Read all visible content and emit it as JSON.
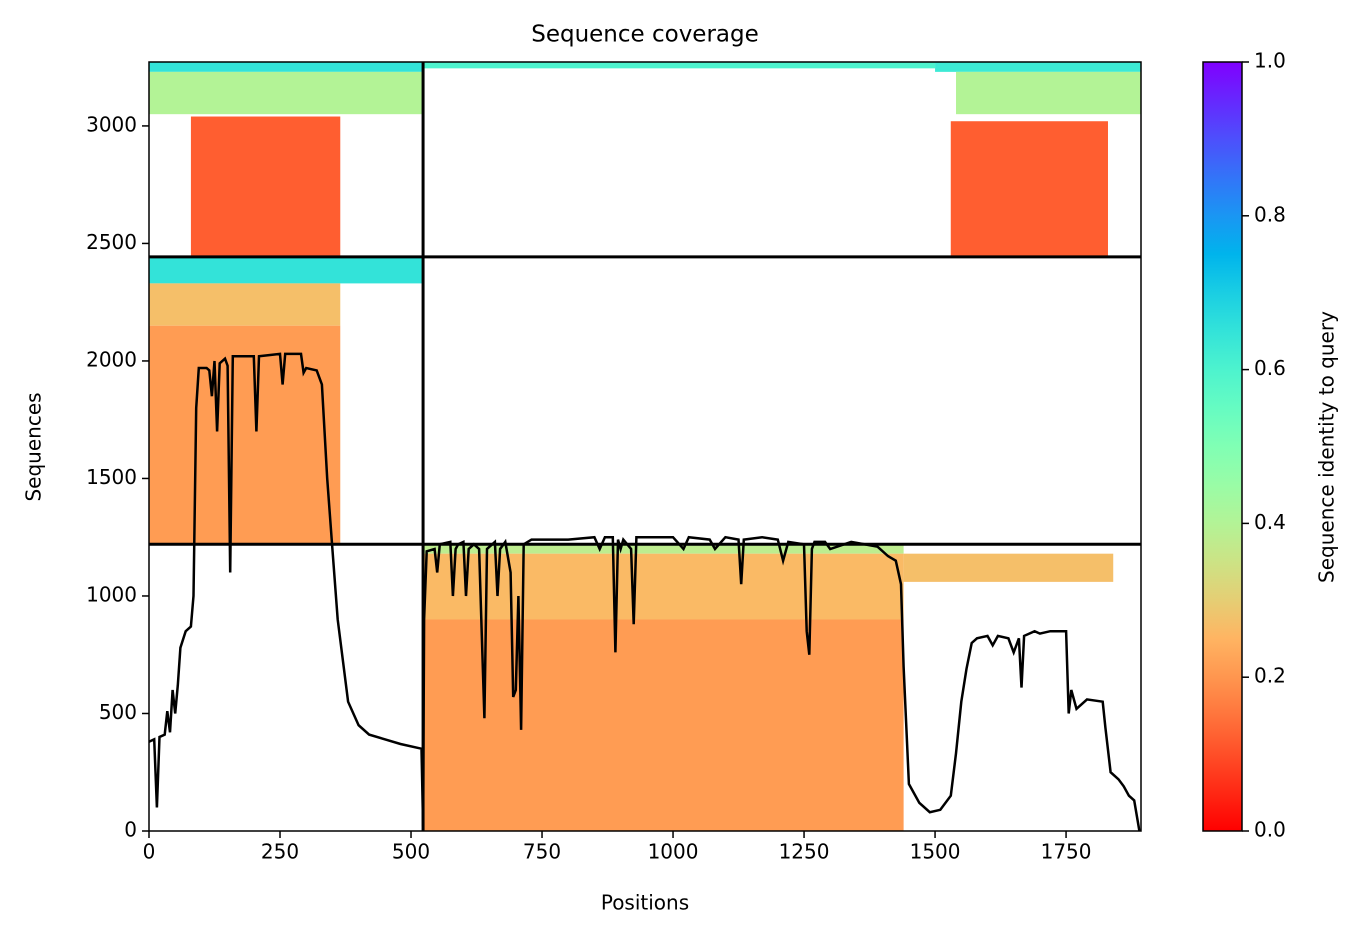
{
  "chart_data": {
    "type": "coverage",
    "title": "Sequence coverage",
    "xlabel": "Positions",
    "ylabel": "Sequences",
    "xlim": [
      0,
      1893
    ],
    "ylim": [
      0,
      3272
    ],
    "xticks": [
      0,
      250,
      500,
      750,
      1000,
      1250,
      1500,
      1750
    ],
    "yticks": [
      0,
      500,
      1000,
      1500,
      2000,
      2500,
      3000
    ],
    "line_color": "#000000",
    "separators": {
      "x": [
        523
      ],
      "y": [
        1220,
        2443
      ]
    },
    "blocks": [
      {
        "x0": 0,
        "x1": 523,
        "y0": 3230,
        "y1": 3272,
        "identity": 0.65
      },
      {
        "x0": 0,
        "x1": 523,
        "y0": 3050,
        "y1": 3230,
        "identity": 0.4
      },
      {
        "x0": 80,
        "x1": 365,
        "y0": 2443,
        "y1": 3040,
        "identity": 0.12
      },
      {
        "x0": 523,
        "x1": 1500,
        "y0": 3245,
        "y1": 3272,
        "identity": 0.6
      },
      {
        "x0": 1500,
        "x1": 1893,
        "y0": 3230,
        "y1": 3272,
        "identity": 0.63
      },
      {
        "x0": 1540,
        "x1": 1893,
        "y0": 3050,
        "y1": 3230,
        "identity": 0.4
      },
      {
        "x0": 1530,
        "x1": 1830,
        "y0": 2443,
        "y1": 3020,
        "identity": 0.12
      },
      {
        "x0": 0,
        "x1": 523,
        "y0": 2330,
        "y1": 2443,
        "identity": 0.65
      },
      {
        "x0": 0,
        "x1": 365,
        "y0": 2150,
        "y1": 2330,
        "identity": 0.27
      },
      {
        "x0": 0,
        "x1": 365,
        "y0": 1220,
        "y1": 2150,
        "identity": 0.21
      },
      {
        "x0": 523,
        "x1": 1440,
        "y0": 1180,
        "y1": 1220,
        "identity": 0.38
      },
      {
        "x0": 523,
        "x1": 1440,
        "y0": 900,
        "y1": 1180,
        "identity": 0.26
      },
      {
        "x0": 523,
        "x1": 1440,
        "y0": 0,
        "y1": 900,
        "identity": 0.21
      },
      {
        "x0": 1440,
        "x1": 1840,
        "y0": 1060,
        "y1": 1180,
        "identity": 0.27
      }
    ],
    "coverage": {
      "x": [
        0,
        10,
        15,
        20,
        30,
        35,
        40,
        45,
        50,
        55,
        60,
        70,
        80,
        85,
        90,
        95,
        110,
        115,
        120,
        125,
        130,
        135,
        145,
        150,
        155,
        160,
        200,
        205,
        210,
        250,
        255,
        260,
        290,
        295,
        300,
        320,
        330,
        340,
        350,
        360,
        380,
        400,
        420,
        450,
        480,
        520,
        523,
        525,
        530,
        545,
        550,
        555,
        575,
        580,
        585,
        590,
        600,
        605,
        610,
        620,
        630,
        640,
        645,
        660,
        665,
        670,
        680,
        690,
        695,
        700,
        705,
        710,
        715,
        730,
        800,
        850,
        860,
        870,
        885,
        890,
        895,
        900,
        905,
        920,
        925,
        930,
        1000,
        1020,
        1030,
        1070,
        1080,
        1100,
        1125,
        1130,
        1135,
        1170,
        1200,
        1210,
        1220,
        1250,
        1255,
        1260,
        1265,
        1270,
        1290,
        1300,
        1340,
        1390,
        1410,
        1425,
        1435,
        1440,
        1450,
        1470,
        1490,
        1510,
        1530,
        1540,
        1550,
        1560,
        1570,
        1580,
        1600,
        1610,
        1620,
        1640,
        1650,
        1660,
        1665,
        1670,
        1690,
        1700,
        1720,
        1750,
        1755,
        1760,
        1770,
        1790,
        1820,
        1825,
        1835,
        1850,
        1860,
        1870,
        1880,
        1890
      ],
      "y": [
        380,
        390,
        100,
        400,
        410,
        510,
        420,
        600,
        500,
        620,
        780,
        850,
        870,
        1000,
        1800,
        1970,
        1970,
        1960,
        1850,
        2000,
        1700,
        1990,
        2010,
        1980,
        1100,
        2020,
        2020,
        1700,
        2020,
        2030,
        1900,
        2030,
        2030,
        1950,
        1970,
        1960,
        1900,
        1500,
        1200,
        900,
        550,
        450,
        410,
        390,
        370,
        350,
        20,
        900,
        1190,
        1200,
        1100,
        1220,
        1230,
        1000,
        1200,
        1220,
        1230,
        1000,
        1200,
        1220,
        1200,
        480,
        1200,
        1230,
        1000,
        1200,
        1230,
        1100,
        570,
        600,
        1000,
        430,
        1220,
        1240,
        1240,
        1250,
        1200,
        1250,
        1250,
        760,
        1240,
        1200,
        1240,
        1200,
        880,
        1250,
        1250,
        1200,
        1250,
        1240,
        1200,
        1250,
        1240,
        1050,
        1240,
        1250,
        1240,
        1150,
        1230,
        1220,
        850,
        750,
        1200,
        1230,
        1230,
        1200,
        1230,
        1210,
        1170,
        1150,
        1050,
        700,
        200,
        120,
        80,
        90,
        150,
        330,
        550,
        690,
        800,
        820,
        830,
        790,
        830,
        820,
        760,
        820,
        610,
        830,
        850,
        840,
        850,
        850,
        500,
        600,
        520,
        560,
        550,
        440,
        250,
        220,
        190,
        150,
        130,
        0
      ]
    },
    "colorbar": {
      "label": "Sequence identity to query",
      "lim": [
        0,
        1
      ],
      "ticks": [
        {
          "value": 0,
          "label": "0.0"
        },
        {
          "value": 0.2,
          "label": "0.2"
        },
        {
          "value": 0.4,
          "label": "0.4"
        },
        {
          "value": 0.6,
          "label": "0.6"
        },
        {
          "value": 0.8,
          "label": "0.8"
        },
        {
          "value": 1,
          "label": "1.0"
        }
      ]
    }
  }
}
